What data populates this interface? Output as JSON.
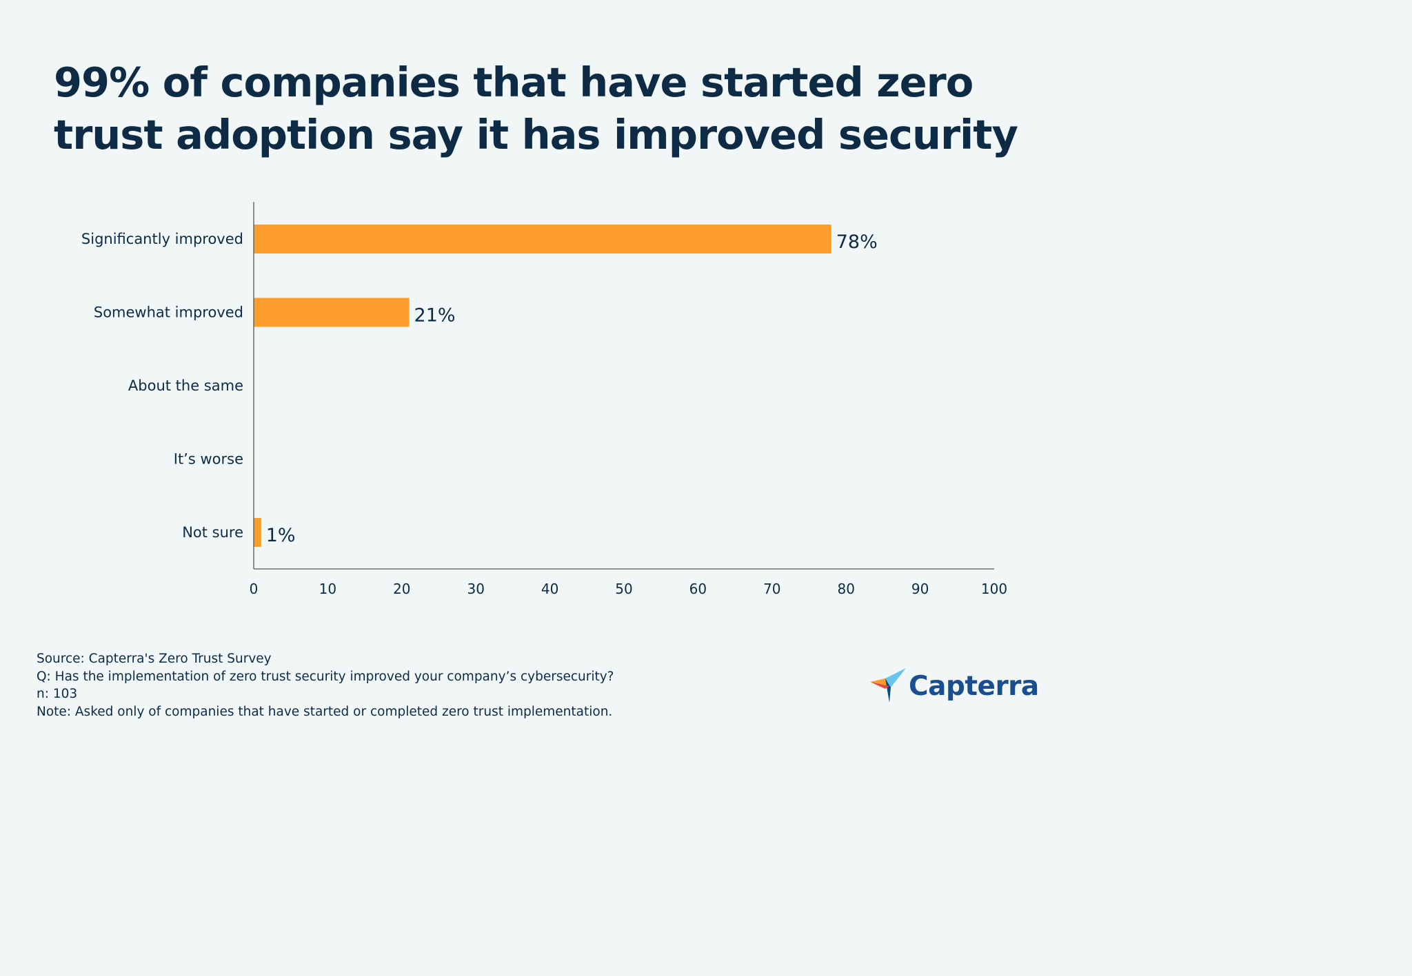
{
  "title": "99% of companies that have started zero trust adoption say it has improved security",
  "chart_data": {
    "type": "bar",
    "orientation": "horizontal",
    "title": "99% of companies that have started zero trust adoption say it has improved security",
    "categories": [
      "Significantly improved",
      "Somewhat improved",
      "About the same",
      "It’s worse",
      "Not sure"
    ],
    "values": [
      78,
      21,
      0,
      0,
      1
    ],
    "value_labels": [
      "78%",
      "21%",
      "",
      "",
      "1%"
    ],
    "xlim": [
      0,
      100
    ],
    "xticks": [
      0,
      10,
      20,
      30,
      40,
      50,
      60,
      70,
      80,
      90,
      100
    ],
    "xlabel": "",
    "ylabel": "",
    "grid": false,
    "bar_color": "#ff9e2c",
    "axis_color": "#555555",
    "text_color": "#0d2b45"
  },
  "footnotes": {
    "source": "Source: Capterra's Zero Trust Survey",
    "question": "Q: Has the implementation of zero trust security improved your company’s cybersecurity?",
    "sample": "n: 103",
    "note": "Note: Asked only of companies that have started or completed zero trust implementation."
  },
  "logo": {
    "wordmark": "Capterra",
    "icon": "capterra-arrow-icon",
    "color": "#194f90"
  }
}
